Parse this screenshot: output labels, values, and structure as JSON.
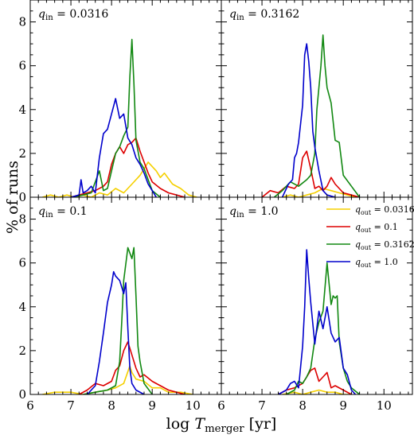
{
  "chart_data": {
    "type": "line",
    "layout": "2x2 grid, shared axes",
    "xlabel": "log T_merger [yr]",
    "ylabel": "% of runs",
    "xlim": [
      6,
      10.7
    ],
    "ylim": [
      0,
      9
    ],
    "xticks": [
      "6",
      "7",
      "8",
      "9",
      "10"
    ],
    "yticks": [
      "0",
      "2",
      "4",
      "6",
      "8"
    ],
    "grid": false,
    "legend_location": "bottom-right panel, top-right",
    "series_styles": [
      {
        "name": "q_out = 0.0316",
        "color": "#f5d000"
      },
      {
        "name": "q_out = 0.1",
        "color": "#dd0000"
      },
      {
        "name": "q_out = 0.3162",
        "color": "#118811"
      },
      {
        "name": "q_out = 1.0",
        "color": "#0000cc"
      }
    ],
    "panels": [
      {
        "label": "q_in = 0.0316",
        "series": [
          {
            "name": "q_out = 0.0316",
            "x": [
              6.3,
              6.5,
              6.7,
              6.9,
              7.1,
              7.3,
              7.5,
              7.7,
              7.9,
              8.1,
              8.3,
              8.5,
              8.7,
              8.9,
              9.1,
              9.2,
              9.3,
              9.5,
              9.7,
              9.9,
              10.1
            ],
            "y": [
              0,
              0.1,
              0,
              0.1,
              0,
              0.1,
              0,
              0.2,
              0.1,
              0.4,
              0.2,
              0.6,
              1.0,
              1.6,
              1.2,
              0.9,
              1.1,
              0.6,
              0.4,
              0.1,
              0
            ]
          },
          {
            "name": "q_out = 0.1",
            "x": [
              7.0,
              7.2,
              7.4,
              7.6,
              7.8,
              7.9,
              8.0,
              8.1,
              8.2,
              8.3,
              8.4,
              8.5,
              8.6,
              8.7,
              8.8,
              8.9,
              9.0,
              9.2,
              9.4,
              9.6,
              9.8
            ],
            "y": [
              0,
              0.1,
              0.2,
              0.3,
              0.5,
              0.7,
              1.5,
              2.0,
              2.3,
              2.0,
              2.4,
              2.5,
              2.7,
              2.1,
              1.6,
              1.1,
              0.7,
              0.4,
              0.2,
              0.1,
              0
            ]
          },
          {
            "name": "q_out = 0.3162",
            "x": [
              7.0,
              7.3,
              7.5,
              7.7,
              7.8,
              7.9,
              8.0,
              8.1,
              8.2,
              8.3,
              8.4,
              8.45,
              8.5,
              8.55,
              8.6,
              8.7,
              8.8,
              8.9,
              9.0,
              9.2
            ],
            "y": [
              0,
              0.1,
              0.2,
              1.2,
              0.3,
              0.4,
              1.2,
              2.0,
              2.3,
              2.8,
              3.2,
              5.5,
              7.2,
              5.2,
              2.6,
              1.6,
              1.3,
              0.8,
              0.3,
              0
            ]
          },
          {
            "name": "q_out = 1.0",
            "x": [
              7.0,
              7.2,
              7.25,
              7.3,
              7.4,
              7.5,
              7.6,
              7.7,
              7.8,
              7.9,
              8.0,
              8.1,
              8.2,
              8.3,
              8.4,
              8.5,
              8.6,
              8.7,
              8.8,
              8.9,
              9.0,
              9.1
            ],
            "y": [
              0,
              0.1,
              0.8,
              0.2,
              0.3,
              0.5,
              0.2,
              1.8,
              2.9,
              3.1,
              3.8,
              4.5,
              3.6,
              3.8,
              2.7,
              2.4,
              1.8,
              1.5,
              1.1,
              0.6,
              0.3,
              0
            ]
          }
        ]
      },
      {
        "label": "q_in = 0.3162",
        "series": [
          {
            "name": "q_out = 0.0316",
            "x": [
              7.5,
              7.7,
              7.9,
              8.1,
              8.3,
              8.5,
              8.7,
              8.9,
              9.1,
              9.3
            ],
            "y": [
              0,
              0.1,
              0,
              0.1,
              0.2,
              0.4,
              0.3,
              0.2,
              0.1,
              0
            ]
          },
          {
            "name": "q_out = 0.1",
            "x": [
              7.0,
              7.2,
              7.4,
              7.6,
              7.8,
              7.9,
              8.0,
              8.1,
              8.2,
              8.3,
              8.4,
              8.5,
              8.6,
              8.7,
              8.8,
              8.9,
              9.0,
              9.2,
              9.4
            ],
            "y": [
              0,
              0.3,
              0.2,
              0.5,
              0.4,
              0.6,
              1.8,
              2.1,
              1.3,
              0.4,
              0.5,
              0.3,
              0.5,
              0.9,
              0.6,
              0.4,
              0.2,
              0.1,
              0
            ]
          },
          {
            "name": "q_out = 0.3162",
            "x": [
              7.3,
              7.5,
              7.7,
              7.9,
              8.1,
              8.2,
              8.3,
              8.35,
              8.45,
              8.5,
              8.55,
              8.6,
              8.7,
              8.8,
              8.9,
              9.0,
              9.2,
              9.4
            ],
            "y": [
              0,
              0.3,
              0.7,
              0.5,
              0.8,
              1.0,
              2.0,
              4.0,
              6.0,
              7.4,
              6.0,
              5.0,
              4.3,
              2.6,
              2.5,
              1.0,
              0.5,
              0
            ]
          },
          {
            "name": "q_out = 1.0",
            "x": [
              7.5,
              7.65,
              7.75,
              7.8,
              7.85,
              7.9,
              8.0,
              8.05,
              8.1,
              8.15,
              8.2,
              8.25,
              8.3,
              8.4,
              8.5,
              8.6,
              8.8
            ],
            "y": [
              0,
              0.6,
              0.8,
              1.8,
              2.0,
              2.5,
              4.2,
              6.5,
              7.0,
              6.2,
              5.0,
              3.0,
              2.3,
              1.2,
              0.3,
              0.1,
              0
            ]
          }
        ]
      },
      {
        "label": "q_in = 0.1",
        "series": [
          {
            "name": "q_out = 0.0316",
            "x": [
              6.3,
              6.6,
              7.0,
              7.3,
              7.6,
              7.9,
              8.1,
              8.3,
              8.45,
              8.5,
              8.6,
              8.8,
              9.0,
              9.2,
              9.4,
              9.7,
              10.0
            ],
            "y": [
              0,
              0.1,
              0.1,
              0,
              0.1,
              0.2,
              0.3,
              0.5,
              1.3,
              1.0,
              0.7,
              0.6,
              0.3,
              0.3,
              0.1,
              0.1,
              0
            ]
          },
          {
            "name": "q_out = 0.1",
            "x": [
              7.2,
              7.4,
              7.6,
              7.8,
              8.0,
              8.1,
              8.2,
              8.3,
              8.4,
              8.5,
              8.6,
              8.7,
              8.8,
              9.0,
              9.2,
              9.4,
              9.6,
              9.8
            ],
            "y": [
              0,
              0.2,
              0.5,
              0.4,
              0.6,
              1.1,
              1.3,
              2.0,
              2.4,
              1.8,
              1.2,
              0.8,
              0.9,
              0.6,
              0.4,
              0.2,
              0.1,
              0
            ]
          },
          {
            "name": "q_out = 0.3162",
            "x": [
              7.3,
              7.6,
              7.9,
              8.1,
              8.2,
              8.25,
              8.3,
              8.4,
              8.5,
              8.55,
              8.6,
              8.65,
              8.7,
              8.8,
              9.0
            ],
            "y": [
              0,
              0.1,
              0.2,
              0.4,
              1.5,
              3.3,
              5.2,
              6.7,
              6.2,
              6.7,
              4.5,
              2.2,
              1.5,
              0.5,
              0
            ]
          },
          {
            "name": "q_out = 1.0",
            "x": [
              7.4,
              7.6,
              7.7,
              7.8,
              7.9,
              8.0,
              8.05,
              8.1,
              8.2,
              8.3,
              8.35,
              8.4,
              8.45,
              8.5,
              8.6,
              8.8
            ],
            "y": [
              0,
              0.4,
              1.5,
              2.8,
              4.2,
              5.0,
              5.6,
              5.4,
              5.2,
              4.6,
              5.1,
              3.0,
              1.2,
              0.5,
              0.2,
              0
            ]
          }
        ]
      },
      {
        "label": "q_in = 1.0",
        "series": [
          {
            "name": "q_out = 0.0316",
            "x": [
              7.5,
              7.8,
              8.0,
              8.2,
              8.4,
              8.6,
              8.8,
              9.0,
              9.2
            ],
            "y": [
              0,
              0.1,
              0,
              0.1,
              0.2,
              0.1,
              0.1,
              0,
              0
            ]
          },
          {
            "name": "q_out = 0.1",
            "x": [
              7.4,
              7.6,
              7.8,
              8.0,
              8.1,
              8.2,
              8.3,
              8.4,
              8.5,
              8.6,
              8.7,
              8.8,
              9.0,
              9.2
            ],
            "y": [
              0,
              0.2,
              0.3,
              0.5,
              0.8,
              1.1,
              1.2,
              0.6,
              0.8,
              1.0,
              0.3,
              0.4,
              0.2,
              0
            ]
          },
          {
            "name": "q_out = 0.3162",
            "x": [
              7.6,
              7.8,
              7.9,
              8.0,
              8.1,
              8.2,
              8.3,
              8.4,
              8.5,
              8.6,
              8.7,
              8.75,
              8.8,
              8.85,
              8.9,
              9.0,
              9.1,
              9.2,
              9.4
            ],
            "y": [
              0,
              0.2,
              0.6,
              0.5,
              0.8,
              1.2,
              2.5,
              3.3,
              3.8,
              6.0,
              4.1,
              4.5,
              4.4,
              4.5,
              2.4,
              1.2,
              0.6,
              0.3,
              0
            ]
          },
          {
            "name": "q_out = 1.0",
            "x": [
              7.4,
              7.6,
              7.7,
              7.8,
              7.9,
              8.0,
              8.05,
              8.1,
              8.15,
              8.2,
              8.3,
              8.4,
              8.5,
              8.6,
              8.7,
              8.8,
              8.9,
              9.0,
              9.1,
              9.2,
              9.3
            ],
            "y": [
              0,
              0.2,
              0.5,
              0.6,
              0.3,
              2.2,
              4.0,
              6.6,
              5.3,
              4.2,
              2.3,
              3.8,
              3.0,
              4.0,
              2.8,
              2.4,
              2.6,
              1.2,
              0.9,
              0.2,
              0
            ]
          }
        ]
      }
    ]
  }
}
